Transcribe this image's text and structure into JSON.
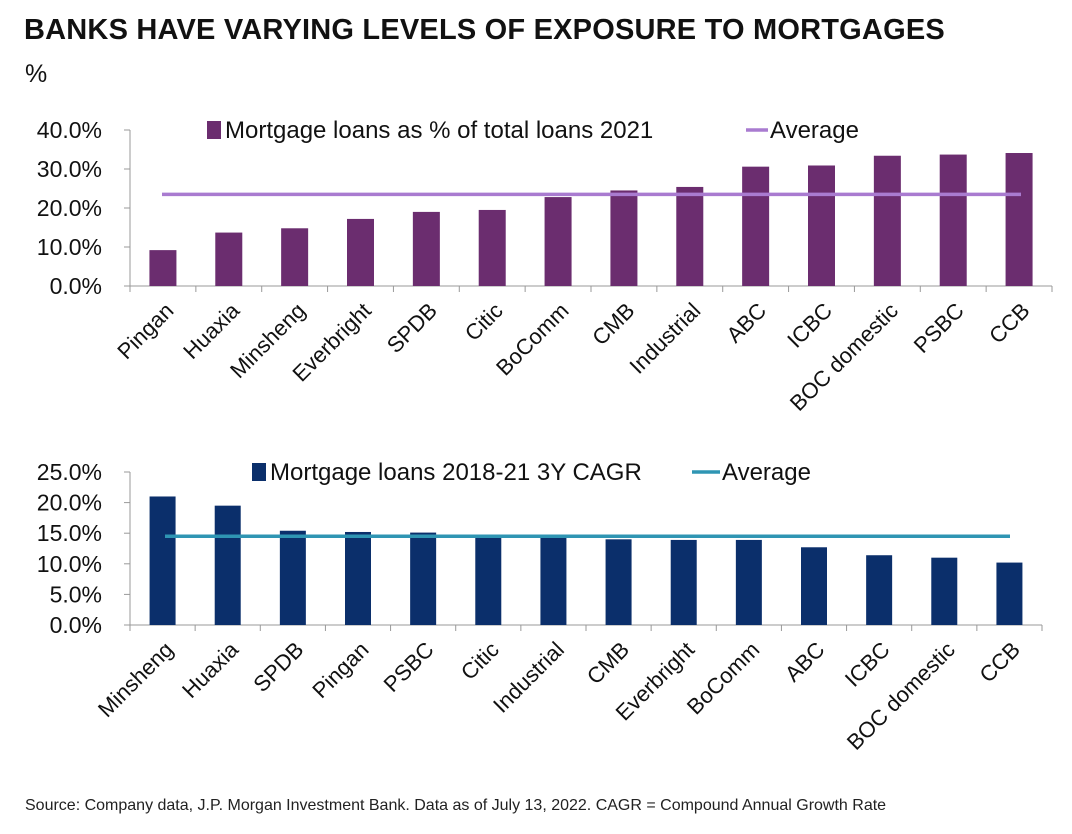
{
  "title": "BANKS HAVE VARYING LEVELS OF EXPOSURE TO MORTGAGES",
  "unit": "%",
  "source": "Source: Company data, J.P. Morgan Investment Bank. Data as of July 13, 2022. CAGR = Compound Annual Growth Rate",
  "colors": {
    "chart1_bar": "#6b2d6f",
    "chart1_avg": "#a97bd0",
    "chart2_bar": "#0b2f6b",
    "chart2_avg": "#2f95b3",
    "axis": "#999999"
  },
  "chart_data": [
    {
      "type": "bar",
      "categories": [
        "Pingan",
        "Huaxia",
        "Minsheng",
        "Everbright",
        "SPDB",
        "Citic",
        "BoComm",
        "CMB",
        "Industrial",
        "ABC",
        "ICBC",
        "BOC domestic",
        "PSBC",
        "CCB"
      ],
      "series": [
        {
          "name": "Mortgage loans as % of total loans 2021",
          "values": [
            9.2,
            13.7,
            14.8,
            17.2,
            19.0,
            19.5,
            22.8,
            24.5,
            25.4,
            30.6,
            30.9,
            33.4,
            33.7,
            34.1
          ]
        }
      ],
      "average": {
        "name": "Average",
        "value": 23.5
      },
      "yticks": [
        "0.0%",
        "10.0%",
        "20.0%",
        "30.0%",
        "40.0%"
      ],
      "ylim": [
        0,
        40
      ],
      "legend_position": "top"
    },
    {
      "type": "bar",
      "categories": [
        "Minsheng",
        "Huaxia",
        "SPDB",
        "Pingan",
        "PSBC",
        "Citic",
        "Industrial",
        "CMB",
        "Everbright",
        "BoComm",
        "ABC",
        "ICBC",
        "BOC domestic",
        "CCB"
      ],
      "series": [
        {
          "name": "Mortgage loans 2018-21 3Y CAGR",
          "values": [
            21.0,
            19.5,
            15.4,
            15.2,
            15.1,
            14.4,
            14.3,
            14.0,
            13.9,
            13.9,
            12.7,
            11.4,
            11.0,
            10.2
          ]
        }
      ],
      "average": {
        "name": "Average",
        "value": 14.5
      },
      "yticks": [
        "0.0%",
        "5.0%",
        "10.0%",
        "15.0%",
        "20.0%",
        "25.0%"
      ],
      "ylim": [
        0,
        25
      ],
      "legend_position": "top"
    }
  ]
}
